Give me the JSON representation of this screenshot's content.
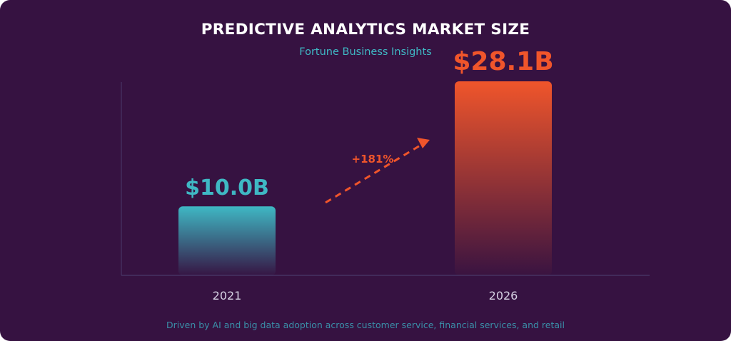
{
  "chart_data": {
    "type": "bar",
    "title": "PREDICTIVE ANALYTICS MARKET SIZE",
    "subtitle": "Fortune Business Insights",
    "categories": [
      "2021",
      "2026"
    ],
    "values": [
      10.0,
      28.1
    ],
    "value_labels": [
      "$10.0B",
      "$28.1B"
    ],
    "unit": "B",
    "ylim": [
      0,
      28.1
    ],
    "grid": false,
    "growth_annotation": "+181%",
    "footnote": "Driven by AI and big data adoption across customer service, financial services, and retail",
    "colors": {
      "background": "#361241",
      "bar_2021": "#3fb8c4",
      "bar_2026": "#f0552b",
      "axis": "#4a3a6a"
    }
  }
}
